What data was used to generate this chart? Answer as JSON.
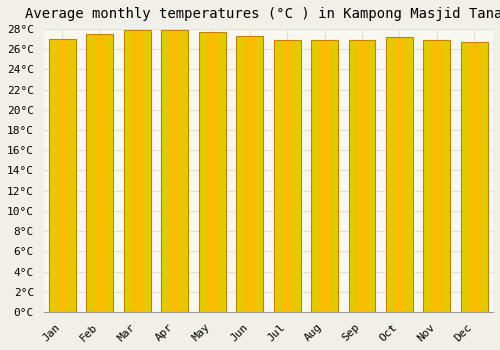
{
  "title": "Average monthly temperatures (°C ) in Kampong Masjid Tanah",
  "months": [
    "Jan",
    "Feb",
    "Mar",
    "Apr",
    "May",
    "Jun",
    "Jul",
    "Aug",
    "Sep",
    "Oct",
    "Nov",
    "Dec"
  ],
  "values": [
    27.0,
    27.5,
    27.9,
    27.9,
    27.7,
    27.3,
    26.9,
    26.9,
    26.9,
    27.2,
    26.9,
    26.7
  ],
  "bar_color_center": "#FFD700",
  "bar_color_edge": "#FFA020",
  "bar_border_color": "#C88000",
  "background_color": "#f0f0e8",
  "plot_bg_color": "#f8f8f0",
  "grid_color": "#e0e0d8",
  "ylim_max": 28,
  "ytick_step": 2,
  "title_fontsize": 10,
  "tick_fontsize": 8,
  "font_family": "monospace"
}
